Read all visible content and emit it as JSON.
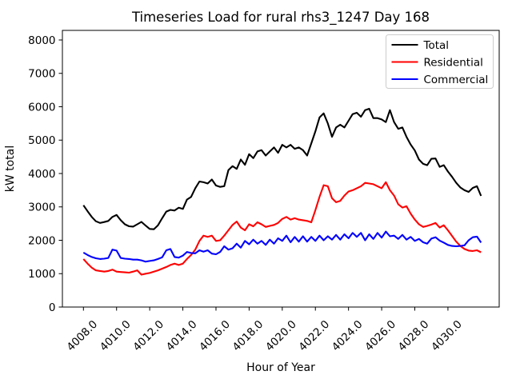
{
  "figure": {
    "background": "#ffffff",
    "plot_border_color": "#000000"
  },
  "chart_data": {
    "type": "line",
    "title": "Timeseries Load for rural rhs3_1247  Day 168",
    "xlabel": "Hour of Year",
    "ylabel": "kW total",
    "xlim": [
      4006.8,
      4033.2
    ],
    "ylim": [
      0,
      8280
    ],
    "grid": false,
    "x_tick_values": [
      4008,
      4010,
      4012,
      4014,
      4016,
      4018,
      4020,
      4022,
      4024,
      4026,
      4028,
      4030
    ],
    "x_tick_labels": [
      "4008.0",
      "4010.0",
      "4012.0",
      "4014.0",
      "4016.0",
      "4018.0",
      "4020.0",
      "4022.0",
      "4024.0",
      "4026.0",
      "4028.0",
      "4030.0"
    ],
    "x_tick_rotation_deg": 45,
    "y_tick_values": [
      0,
      1000,
      2000,
      3000,
      4000,
      5000,
      6000,
      7000,
      8000
    ],
    "y_tick_labels": [
      "0",
      "1000",
      "2000",
      "3000",
      "4000",
      "5000",
      "6000",
      "7000",
      "8000"
    ],
    "x_start": 4008.0,
    "x_step": 0.25,
    "legend": {
      "position": "upper right",
      "entries": [
        "Total",
        "Residential",
        "Commercial"
      ],
      "border_color": "#cccccc",
      "fill": "#ffffff"
    },
    "series": [
      {
        "name": "Total",
        "color": "#000000",
        "values": [
          3050,
          2870,
          2700,
          2570,
          2520,
          2545,
          2580,
          2700,
          2760,
          2600,
          2480,
          2420,
          2410,
          2480,
          2550,
          2440,
          2340,
          2330,
          2450,
          2660,
          2860,
          2910,
          2890,
          2975,
          2940,
          3220,
          3300,
          3560,
          3760,
          3740,
          3700,
          3820,
          3640,
          3600,
          3620,
          4100,
          4220,
          4140,
          4420,
          4260,
          4580,
          4460,
          4660,
          4700,
          4540,
          4660,
          4780,
          4620,
          4860,
          4780,
          4860,
          4740,
          4780,
          4700,
          4540,
          4900,
          5260,
          5680,
          5800,
          5500,
          5100,
          5380,
          5460,
          5380,
          5580,
          5780,
          5820,
          5700,
          5900,
          5940,
          5660,
          5660,
          5620,
          5540,
          5900,
          5540,
          5340,
          5380,
          5100,
          4870,
          4690,
          4420,
          4290,
          4250,
          4440,
          4450,
          4200,
          4250,
          4060,
          3900,
          3720,
          3580,
          3500,
          3450,
          3570,
          3620,
          3330
        ]
      },
      {
        "name": "Residential",
        "color": "#ff0000",
        "values": [
          1440,
          1300,
          1180,
          1100,
          1080,
          1060,
          1080,
          1120,
          1060,
          1050,
          1040,
          1030,
          1060,
          1100,
          970,
          1000,
          1020,
          1060,
          1100,
          1150,
          1200,
          1260,
          1300,
          1260,
          1300,
          1440,
          1560,
          1720,
          1980,
          2140,
          2100,
          2140,
          1980,
          2000,
          2140,
          2300,
          2460,
          2560,
          2380,
          2300,
          2480,
          2420,
          2540,
          2480,
          2400,
          2430,
          2460,
          2520,
          2640,
          2700,
          2620,
          2660,
          2620,
          2600,
          2580,
          2540,
          2900,
          3300,
          3650,
          3620,
          3260,
          3140,
          3180,
          3340,
          3460,
          3500,
          3560,
          3620,
          3720,
          3700,
          3680,
          3620,
          3560,
          3740,
          3500,
          3340,
          3080,
          2980,
          3020,
          2800,
          2620,
          2480,
          2400,
          2430,
          2470,
          2520,
          2380,
          2450,
          2300,
          2130,
          1960,
          1830,
          1740,
          1690,
          1680,
          1700,
          1640
        ]
      },
      {
        "name": "Commercial",
        "color": "#0000ff",
        "values": [
          1630,
          1560,
          1500,
          1460,
          1440,
          1450,
          1470,
          1720,
          1690,
          1470,
          1450,
          1440,
          1420,
          1420,
          1400,
          1360,
          1380,
          1400,
          1440,
          1490,
          1700,
          1740,
          1500,
          1480,
          1540,
          1650,
          1620,
          1610,
          1700,
          1660,
          1700,
          1600,
          1580,
          1650,
          1820,
          1720,
          1760,
          1900,
          1780,
          1980,
          1880,
          2020,
          1900,
          1980,
          1860,
          2020,
          1900,
          2060,
          1980,
          2140,
          1940,
          2100,
          1960,
          2120,
          1960,
          2100,
          1980,
          2140,
          2000,
          2120,
          2020,
          2160,
          2020,
          2180,
          2060,
          2220,
          2100,
          2220,
          2000,
          2180,
          2040,
          2220,
          2080,
          2260,
          2120,
          2140,
          2040,
          2160,
          2020,
          2100,
          1980,
          2040,
          1940,
          1900,
          2050,
          2090,
          1990,
          1930,
          1860,
          1830,
          1820,
          1830,
          1850,
          2000,
          2090,
          2110,
          1930
        ]
      }
    ]
  }
}
